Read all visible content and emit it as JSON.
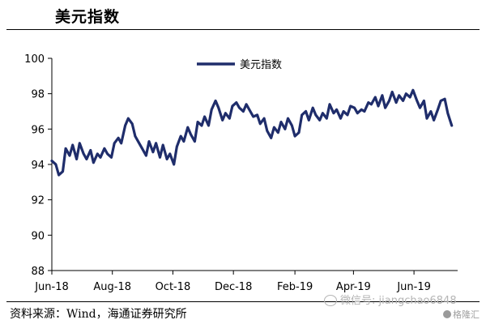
{
  "header": {
    "title": "美元指数"
  },
  "footer": {
    "source": "资料来源：Wind，海通证券研究所"
  },
  "watermark": {
    "text": "微信号: jiangchao6848",
    "brand": "格隆汇"
  },
  "chart_data": {
    "type": "line",
    "title": "美元指数",
    "xlabel": "",
    "ylabel": "",
    "ylim": [
      88,
      100
    ],
    "yticks": [
      88,
      90,
      92,
      94,
      96,
      98,
      100
    ],
    "x_tick_labels": [
      "Jun-18",
      "Aug-18",
      "Oct-18",
      "Dec-18",
      "Feb-19",
      "Apr-19",
      "Jun-19"
    ],
    "x_tick_dates": [
      "2018-06-01",
      "2018-08-01",
      "2018-10-01",
      "2018-12-01",
      "2019-02-01",
      "2019-04-01",
      "2019-06-01"
    ],
    "x_range": [
      "2018-06-01",
      "2019-07-15"
    ],
    "grid": false,
    "legend": {
      "position": "top-center"
    },
    "line_color": "#1f2d6b",
    "series": [
      {
        "name": "美元指数",
        "x": [
          "2018-06-01",
          "2018-06-05",
          "2018-06-08",
          "2018-06-12",
          "2018-06-15",
          "2018-06-19",
          "2018-06-22",
          "2018-06-26",
          "2018-06-29",
          "2018-07-03",
          "2018-07-06",
          "2018-07-10",
          "2018-07-13",
          "2018-07-17",
          "2018-07-20",
          "2018-07-24",
          "2018-07-27",
          "2018-07-31",
          "2018-08-03",
          "2018-08-07",
          "2018-08-10",
          "2018-08-14",
          "2018-08-17",
          "2018-08-21",
          "2018-08-24",
          "2018-08-28",
          "2018-08-31",
          "2018-09-04",
          "2018-09-07",
          "2018-09-11",
          "2018-09-14",
          "2018-09-18",
          "2018-09-21",
          "2018-09-25",
          "2018-09-28",
          "2018-10-02",
          "2018-10-05",
          "2018-10-09",
          "2018-10-12",
          "2018-10-16",
          "2018-10-19",
          "2018-10-23",
          "2018-10-26",
          "2018-10-30",
          "2018-11-02",
          "2018-11-06",
          "2018-11-09",
          "2018-11-13",
          "2018-11-16",
          "2018-11-20",
          "2018-11-23",
          "2018-11-27",
          "2018-11-30",
          "2018-12-04",
          "2018-12-07",
          "2018-12-11",
          "2018-12-14",
          "2018-12-18",
          "2018-12-21",
          "2018-12-25",
          "2018-12-28",
          "2019-01-01",
          "2019-01-04",
          "2019-01-08",
          "2019-01-11",
          "2019-01-15",
          "2019-01-18",
          "2019-01-22",
          "2019-01-25",
          "2019-01-29",
          "2019-02-01",
          "2019-02-05",
          "2019-02-08",
          "2019-02-12",
          "2019-02-15",
          "2019-02-19",
          "2019-02-22",
          "2019-02-26",
          "2019-03-01",
          "2019-03-05",
          "2019-03-08",
          "2019-03-12",
          "2019-03-15",
          "2019-03-19",
          "2019-03-22",
          "2019-03-26",
          "2019-03-29",
          "2019-04-02",
          "2019-04-05",
          "2019-04-09",
          "2019-04-12",
          "2019-04-16",
          "2019-04-19",
          "2019-04-23",
          "2019-04-26",
          "2019-04-30",
          "2019-05-03",
          "2019-05-07",
          "2019-05-10",
          "2019-05-14",
          "2019-05-17",
          "2019-05-21",
          "2019-05-24",
          "2019-05-28",
          "2019-05-31",
          "2019-06-04",
          "2019-06-07",
          "2019-06-11",
          "2019-06-14",
          "2019-06-18",
          "2019-06-21",
          "2019-06-25",
          "2019-06-28",
          "2019-07-02",
          "2019-07-05",
          "2019-07-09"
        ],
        "values": [
          94.2,
          94.0,
          93.4,
          93.6,
          94.9,
          94.5,
          95.1,
          94.3,
          95.2,
          94.6,
          94.3,
          94.8,
          94.1,
          94.6,
          94.4,
          94.9,
          94.6,
          94.4,
          95.2,
          95.5,
          95.2,
          96.2,
          96.6,
          96.3,
          95.6,
          95.2,
          94.9,
          94.5,
          95.3,
          94.7,
          95.2,
          94.4,
          95.1,
          94.3,
          94.6,
          94.0,
          95.0,
          95.6,
          95.3,
          96.1,
          95.7,
          95.3,
          96.4,
          96.2,
          96.7,
          96.2,
          97.1,
          97.6,
          97.2,
          96.5,
          96.9,
          96.6,
          97.3,
          97.5,
          97.2,
          97.0,
          97.4,
          97.0,
          96.7,
          96.8,
          96.3,
          96.6,
          95.9,
          95.5,
          96.1,
          95.8,
          96.4,
          96.0,
          96.6,
          96.2,
          95.6,
          95.8,
          96.8,
          97.0,
          96.5,
          97.2,
          96.8,
          96.5,
          96.9,
          96.6,
          97.4,
          96.9,
          97.1,
          96.6,
          97.0,
          96.8,
          97.3,
          97.2,
          96.9,
          97.1,
          97.0,
          97.5,
          97.4,
          97.8,
          97.3,
          97.9,
          97.2,
          97.6,
          98.1,
          97.5,
          97.9,
          97.6,
          98.0,
          97.8,
          98.2,
          97.6,
          97.2,
          97.6,
          96.6,
          97.0,
          96.5,
          97.1,
          97.6,
          97.7,
          96.9,
          96.2
        ]
      }
    ]
  }
}
